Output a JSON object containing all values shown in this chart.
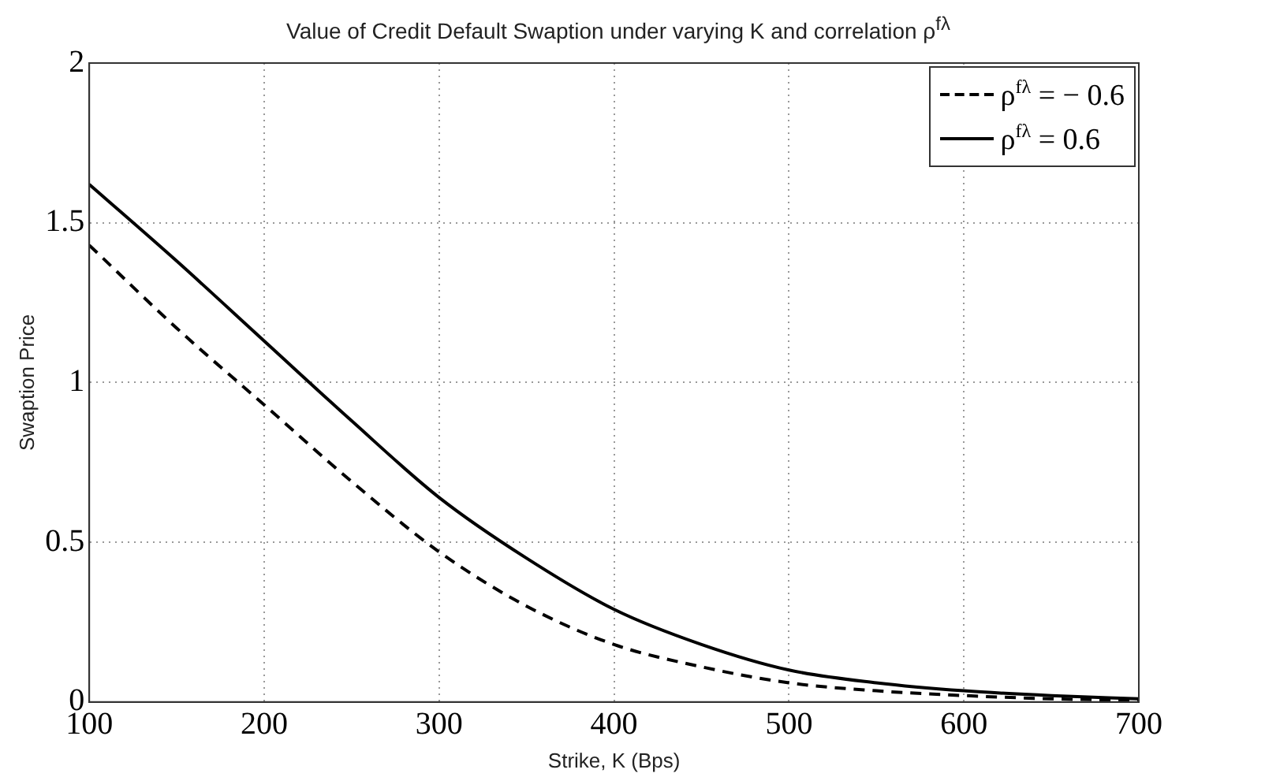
{
  "chart_data": {
    "type": "line",
    "title": "Value of Credit Default Swaption under varying K and correlation ρ$^{fλ}$",
    "xlabel": "Strike, K (Bps)",
    "ylabel": "Swaption Price",
    "x": [
      100,
      150,
      200,
      250,
      300,
      350,
      400,
      450,
      500,
      550,
      600,
      650,
      700
    ],
    "series": [
      {
        "name": "ρ$^{fλ}$ = − 0.6",
        "color": "#000000",
        "line_style": "dashed",
        "values": [
          1.43,
          1.17,
          0.93,
          0.69,
          0.47,
          0.3,
          0.18,
          0.11,
          0.06,
          0.035,
          0.02,
          0.01,
          0.005
        ]
      },
      {
        "name": "ρ$^{fλ}$ = 0.6",
        "color": "#000000",
        "line_style": "solid",
        "values": [
          1.62,
          1.38,
          1.13,
          0.88,
          0.64,
          0.45,
          0.29,
          0.18,
          0.1,
          0.06,
          0.035,
          0.02,
          0.01
        ]
      }
    ],
    "xlim": [
      100,
      700
    ],
    "xticks": [
      100,
      200,
      300,
      400,
      500,
      600,
      700
    ],
    "ylim": [
      0,
      2
    ],
    "yticks": [
      0,
      0.5,
      1,
      1.5,
      2
    ],
    "grid": true,
    "legend": "top right",
    "marker": "none"
  }
}
